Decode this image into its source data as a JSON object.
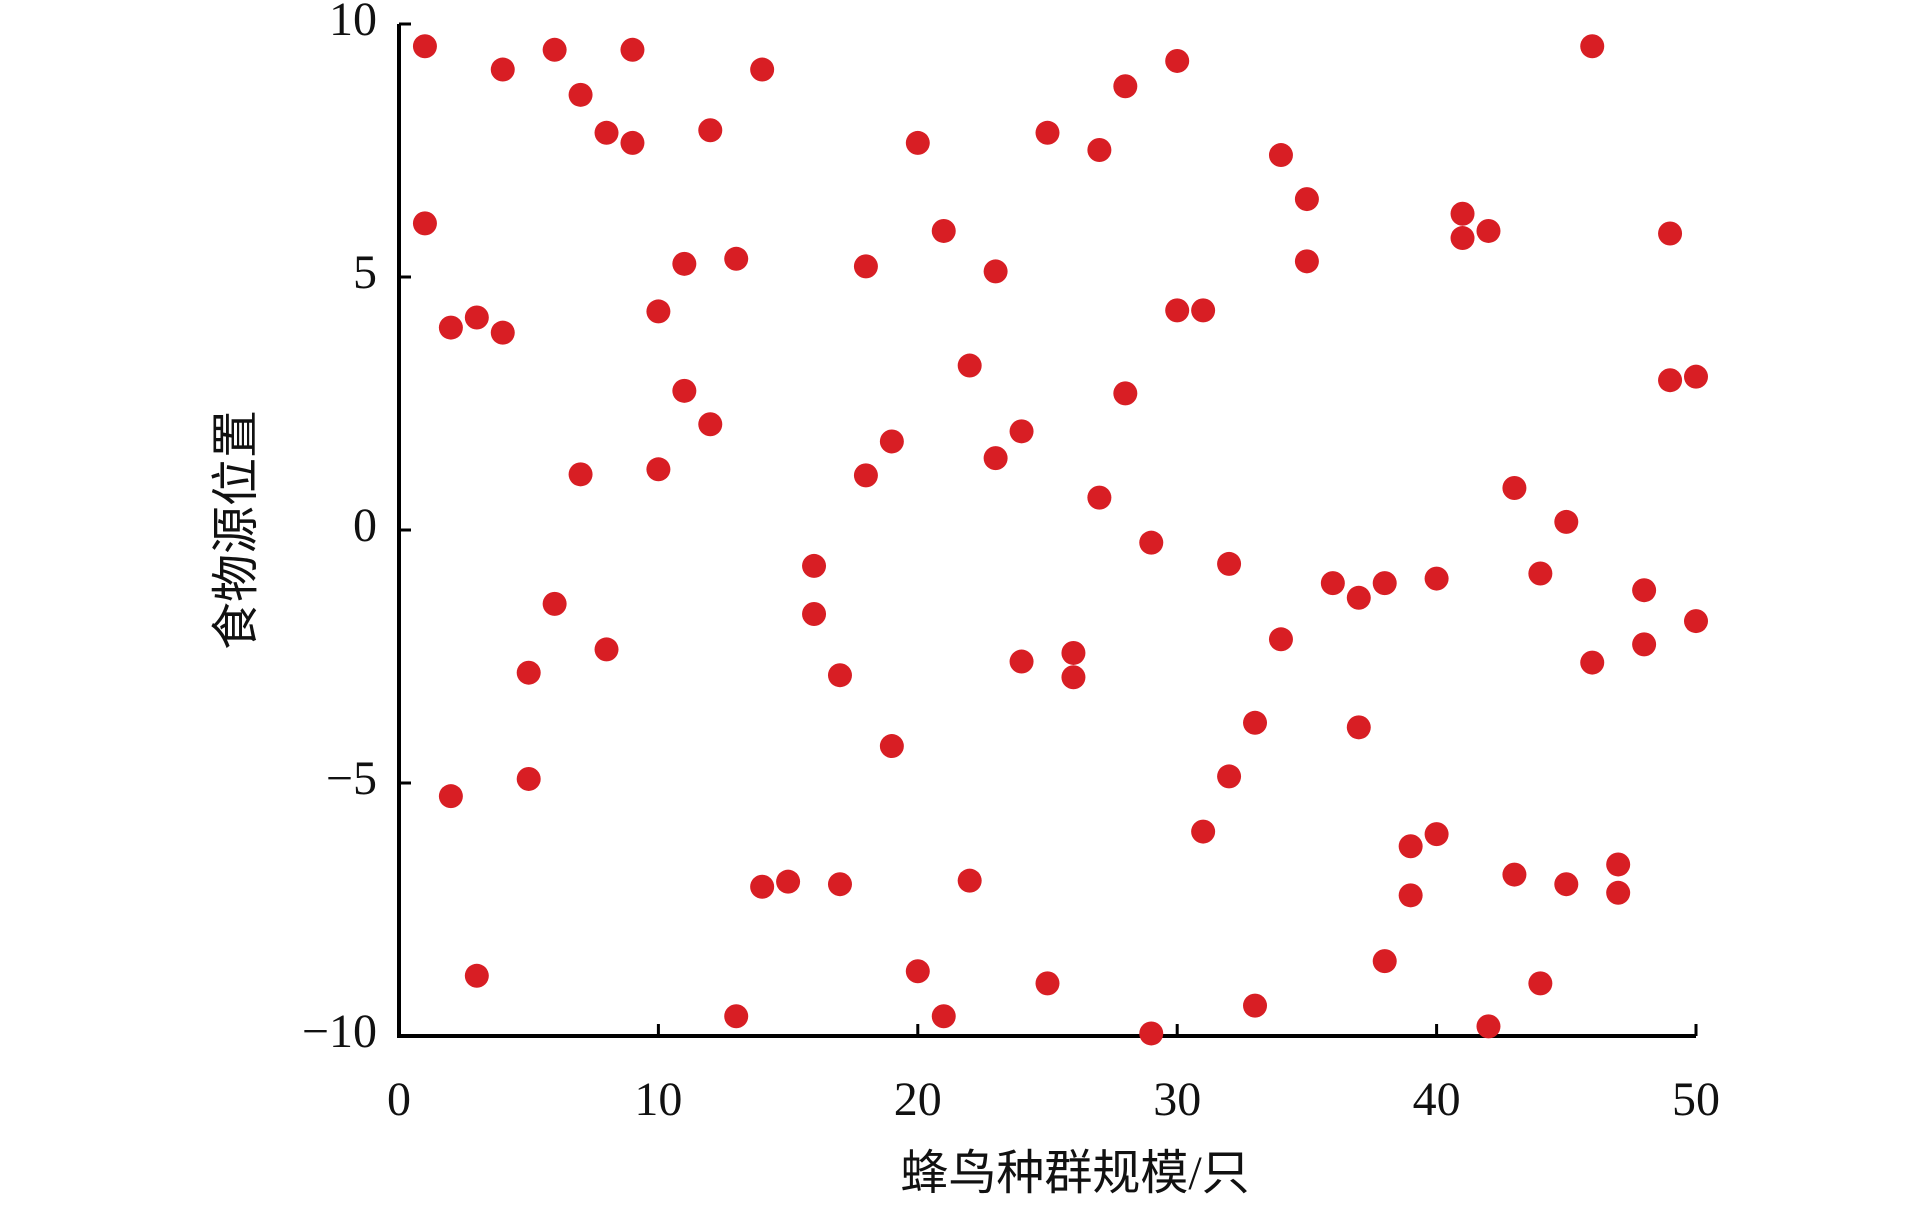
{
  "chart_data": {
    "type": "scatter",
    "xlabel": "蜂鸟种群规模/只",
    "ylabel": "食物源位置",
    "xlim": [
      0,
      50
    ],
    "ylim": [
      -10,
      10
    ],
    "xticks": [
      0,
      10,
      20,
      30,
      40,
      50
    ],
    "yticks": [
      {
        "value": -10,
        "label": "−10"
      },
      {
        "value": -5,
        "label": "−5"
      },
      0,
      5,
      10
    ],
    "grid": false,
    "series": [
      {
        "color": "#d81e24",
        "x": [
          1,
          1,
          2,
          2,
          3,
          3,
          4,
          4,
          5,
          5,
          6,
          6,
          7,
          7,
          8,
          8,
          9,
          9,
          10,
          10,
          11,
          11,
          12,
          12,
          13,
          13,
          14,
          14,
          15,
          16,
          16,
          17,
          17,
          18,
          18,
          19,
          19,
          20,
          20,
          21,
          21,
          22,
          22,
          23,
          23,
          24,
          24,
          25,
          25,
          26,
          26,
          27,
          27,
          28,
          28,
          29,
          29,
          30,
          30,
          31,
          31,
          32,
          32,
          33,
          33,
          34,
          34,
          35,
          35,
          36,
          37,
          37,
          38,
          38,
          39,
          39,
          40,
          40,
          41,
          41,
          42,
          42,
          43,
          43,
          44,
          44,
          45,
          45,
          46,
          46,
          47,
          47,
          48,
          48,
          49,
          49,
          50,
          50
        ],
        "values": [
          9.56,
          6.06,
          4.0,
          -5.26,
          4.2,
          -8.81,
          9.1,
          3.9,
          -2.82,
          -4.92,
          9.49,
          -1.46,
          8.6,
          1.1,
          7.85,
          -2.36,
          9.49,
          7.65,
          4.32,
          1.2,
          5.26,
          2.75,
          7.9,
          2.09,
          5.36,
          -9.61,
          9.1,
          -7.05,
          -6.95,
          -0.71,
          -1.66,
          -2.87,
          -7.0,
          5.21,
          1.08,
          1.75,
          -4.27,
          7.65,
          -8.72,
          5.91,
          -9.61,
          3.25,
          -6.93,
          5.11,
          1.42,
          1.95,
          -2.6,
          7.85,
          -8.96,
          -2.43,
          -2.91,
          7.51,
          0.64,
          8.77,
          2.7,
          -0.25,
          -9.95,
          9.27,
          4.34,
          4.34,
          -5.96,
          -0.67,
          -4.87,
          -3.81,
          -9.4,
          7.41,
          -2.16,
          6.54,
          5.31,
          -1.05,
          -1.34,
          -3.9,
          -1.05,
          -8.52,
          -6.25,
          -7.22,
          -0.96,
          -6.01,
          6.25,
          5.77,
          5.91,
          -9.81,
          0.83,
          -6.81,
          -0.86,
          -8.96,
          0.16,
          -7.0,
          9.56,
          -2.62,
          -6.61,
          -7.17,
          -1.19,
          -2.26,
          5.86,
          2.96,
          3.03,
          -1.8
        ]
      }
    ]
  }
}
